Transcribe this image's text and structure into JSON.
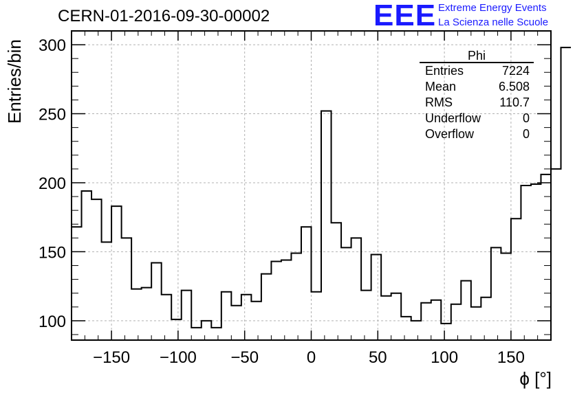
{
  "header": {
    "run_title": "CERN-01-2016-09-30-00002",
    "logo_text": "EEE",
    "logo_line1": "Extreme Energy Events",
    "logo_line2": "La Scienza nelle Scuole"
  },
  "stats": {
    "title": "Phi",
    "rows": [
      {
        "label": "Entries",
        "value": "7224"
      },
      {
        "label": "Mean",
        "value": "6.508"
      },
      {
        "label": "RMS",
        "value": "110.7"
      },
      {
        "label": "Underflow",
        "value": "0"
      },
      {
        "label": "Overflow",
        "value": "0"
      }
    ]
  },
  "colors": {
    "line": "#000000",
    "grid": "#b0b0b0",
    "logo": "#1a1aff"
  },
  "chart_data": {
    "type": "histogram",
    "title": "CERN-01-2016-09-30-00002",
    "xlabel": "ϕ [°]",
    "ylabel": "Entries/bin",
    "xlim": [
      -180,
      180
    ],
    "ylim": [
      86,
      310
    ],
    "grid": true,
    "bin_width": 7.5,
    "x_ticks": [
      -150,
      -100,
      -50,
      0,
      50,
      100,
      150
    ],
    "x_tick_labels": [
      "−150",
      "−100",
      "−50",
      "0",
      "50",
      "100",
      "150"
    ],
    "y_ticks": [
      100,
      150,
      200,
      250,
      300
    ],
    "y_tick_labels": [
      "100",
      "150",
      "200",
      "250",
      "300"
    ],
    "bin_edges_start": -180,
    "values": [
      168,
      194,
      188,
      157,
      183,
      160,
      123,
      124,
      142,
      119,
      101,
      122,
      95,
      100,
      95,
      121,
      111,
      119,
      114,
      134,
      143,
      144,
      149,
      168,
      121,
      252,
      171,
      153,
      160,
      122,
      148,
      118,
      120,
      103,
      100,
      113,
      115,
      98,
      112,
      129,
      110,
      117,
      153,
      149,
      174,
      198,
      199,
      206,
      210,
      298
    ]
  }
}
